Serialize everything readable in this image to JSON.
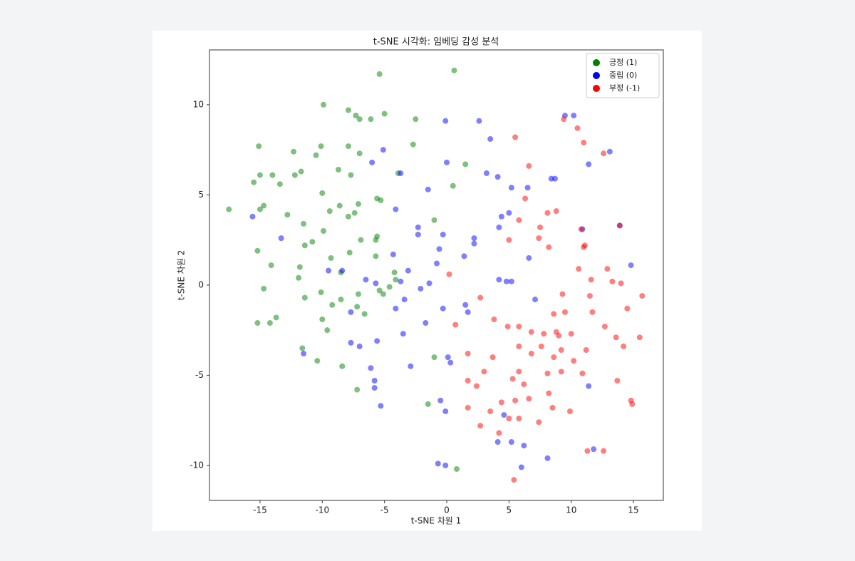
{
  "chart_data": {
    "type": "scatter",
    "title": "t-SNE 시각화: 임베딩 감성 분석",
    "x_label": "t-SNE 차원 1",
    "y_label": "t-SNE 차원 2",
    "xlim": [
      -19.06,
      17.4
    ],
    "ylim": [
      -11.94,
      13.04
    ],
    "xticks": [
      -15,
      -10,
      -5,
      0,
      5,
      10,
      15
    ],
    "yticks": [
      -10,
      -5,
      0,
      5,
      10
    ],
    "legend": "upper right",
    "alpha": 0.5,
    "series": [
      {
        "name": "긍정 (1)",
        "color": "green",
        "x": [
          -5.4,
          0.6,
          -9.9,
          -7.9,
          -7.3,
          -7.0,
          -6.1,
          -5.0,
          -2.5,
          -15.1,
          -12.3,
          -10.5,
          -10.1,
          -7.9,
          -7.0,
          -2.7,
          -15.0,
          -14.0,
          -12.2,
          -11.7,
          -8.7,
          -7.7,
          -3.9,
          1.5,
          -15.5,
          -13.4,
          0.5,
          -17.5,
          -14.7,
          -15.0,
          -10.0,
          -12.8,
          -9.4,
          -8.6,
          -7.1,
          -5.6,
          -5.3,
          -7.4,
          -7.9,
          -11.5,
          -9.9,
          -1.0,
          -10.8,
          -11.4,
          -6.9,
          -5.6,
          -5.7,
          -15.2,
          -9.3,
          -7.8,
          -5.7,
          -14.1,
          -11.8,
          -11.9,
          -8.5,
          -4.2,
          -4.1,
          -14.7,
          -10.1,
          -5.4,
          -5.1,
          -4.6,
          -11.4,
          -9.2,
          -8.5,
          -7.1,
          -7.2,
          -6.6,
          -10.0,
          -13.7,
          -15.2,
          -14.2,
          -9.6,
          -11.6,
          -10.4,
          -1.0,
          -8.4,
          -7.2,
          -1.5,
          0.8
        ],
        "values": [
          11.7,
          11.9,
          10.0,
          9.7,
          9.4,
          9.2,
          9.2,
          9.5,
          9.2,
          7.7,
          7.4,
          7.2,
          7.7,
          7.7,
          7.3,
          7.8,
          6.1,
          6.1,
          6.1,
          6.3,
          6.4,
          6.1,
          6.2,
          6.7,
          5.7,
          5.6,
          5.5,
          4.2,
          4.4,
          4.2,
          5.1,
          3.9,
          4.1,
          4.4,
          4.5,
          4.8,
          4.7,
          4.0,
          3.8,
          3.4,
          3.0,
          3.6,
          2.4,
          2.2,
          2.5,
          2.7,
          2.5,
          1.9,
          1.5,
          1.8,
          1.6,
          1.1,
          1.0,
          0.4,
          0.7,
          0.7,
          0.3,
          -0.2,
          -0.4,
          -0.3,
          -0.5,
          -0.1,
          -0.7,
          -1.1,
          -0.8,
          -0.5,
          -1.2,
          -1.6,
          -1.9,
          -1.8,
          -2.1,
          -2.1,
          -2.5,
          -3.5,
          -4.2,
          -4.0,
          -4.5,
          -5.8,
          -6.6,
          -10.2
        ]
      },
      {
        "name": "중립 (0)",
        "color": "blue",
        "x": [
          -15.6,
          -13.3,
          -11.5,
          -9.5,
          -8.4,
          -7.7,
          -7.7,
          -7.0,
          -6.5,
          -5.7,
          -6.0,
          -5.1,
          -3.7,
          -4.1,
          -4.3,
          -3.7,
          -3.4,
          -4.1,
          -5.6,
          -6.1,
          -5.8,
          -5.8,
          -5.3,
          -3.5,
          -2.9,
          -3.1,
          -2.3,
          -2.3,
          -1.5,
          -0.1,
          0.0,
          -0.3,
          -0.6,
          -0.8,
          -2.1,
          -1.4,
          -1.7,
          -0.3,
          0.1,
          0.3,
          -0.5,
          -0.1,
          -0.7,
          -0.1,
          1.4,
          1.5,
          1.7,
          2.2,
          2.2,
          2.6,
          3.5,
          3.2,
          4.1,
          5.2,
          6.5,
          5.0,
          4.4,
          4.2,
          6.6,
          4.2,
          4.8,
          5.2,
          7.1,
          4.6,
          4.1,
          5.2,
          6.2,
          6.0,
          8.1,
          9.5,
          10.2,
          8.4,
          8.7,
          11.4,
          13.1,
          10.9,
          13.9,
          14.8,
          11.4,
          11.8
        ],
        "values": [
          3.8,
          2.6,
          -3.8,
          0.8,
          0.8,
          -1.5,
          -3.2,
          -3.4,
          0.3,
          0.1,
          6.8,
          7.5,
          6.2,
          4.2,
          1.7,
          0.2,
          -0.8,
          -1.3,
          -3.1,
          -4.6,
          -5.3,
          -5.7,
          -6.7,
          -2.7,
          -4.5,
          0.8,
          3.2,
          2.8,
          5.3,
          9.1,
          6.8,
          2.8,
          2.0,
          1.2,
          -0.2,
          0.1,
          -2.1,
          -1.3,
          -4.0,
          -4.3,
          -6.4,
          -7.0,
          -9.9,
          -10.0,
          1.6,
          -1.1,
          -1.5,
          2.3,
          2.6,
          9.1,
          8.1,
          6.2,
          6.0,
          5.4,
          5.4,
          4.0,
          3.8,
          3.2,
          1.5,
          0.3,
          0.2,
          0.2,
          -0.8,
          -7.2,
          -8.7,
          -8.7,
          -8.9,
          -10.1,
          -9.6,
          9.4,
          9.4,
          5.9,
          5.9,
          6.7,
          7.4,
          3.1,
          3.3,
          1.1,
          -5.6,
          -9.1
        ]
      },
      {
        "name": "부정 (-1)",
        "color": "red",
        "x": [
          5.5,
          6.6,
          6.3,
          5.8,
          5.0,
          0.2,
          0.7,
          2.7,
          1.7,
          1.7,
          2.4,
          3.0,
          3.7,
          3.8,
          4.9,
          5.8,
          5.8,
          6.8,
          6.8,
          5.3,
          5.8,
          6.2,
          6.6,
          5.5,
          4.4,
          3.5,
          1.7,
          2.7,
          5.0,
          4.2,
          7.4,
          5.8,
          5.4,
          7.5,
          8.1,
          8.8,
          8.2,
          7.4,
          10.5,
          9.4,
          11.0,
          12.6,
          10.8,
          11.0,
          11.1,
          10.6,
          12.9,
          11.6,
          13.3,
          14.0,
          13.9,
          9.3,
          11.5,
          15.7,
          14.5,
          11.7,
          9.5,
          8.6,
          7.8,
          8.8,
          9.0,
          10.0,
          12.7,
          13.6,
          14.2,
          15.5,
          11.2,
          9.2,
          8.6,
          7.6,
          10.2,
          8.1,
          9.2,
          10.9,
          8.2,
          8.5,
          9.9,
          13.7,
          14.8,
          14.9,
          11.3,
          12.6
        ],
        "values": [
          8.2,
          6.6,
          4.8,
          3.6,
          2.5,
          0.6,
          -2.2,
          -0.7,
          -3.8,
          -5.3,
          -5.6,
          -4.8,
          -4.0,
          -1.9,
          -2.3,
          -3.4,
          -2.3,
          -2.6,
          -3.8,
          -5.2,
          -4.8,
          -5.5,
          -6.3,
          -6.4,
          -6.5,
          -7.0,
          -6.8,
          -7.8,
          -7.4,
          -8.2,
          -7.6,
          -7.4,
          -10.8,
          3.2,
          4.0,
          4.1,
          2.1,
          2.6,
          8.7,
          9.2,
          7.9,
          7.3,
          3.1,
          2.1,
          2.2,
          0.9,
          0.9,
          0.3,
          0.2,
          0.1,
          3.3,
          -0.5,
          -0.6,
          -0.6,
          -1.3,
          -1.5,
          -1.5,
          -1.6,
          -2.7,
          -2.6,
          -2.8,
          -2.7,
          -2.3,
          -2.9,
          -3.4,
          -2.9,
          -3.6,
          -3.6,
          -4.0,
          -3.4,
          -4.2,
          -4.9,
          -4.8,
          -4.9,
          -6.0,
          -6.8,
          -7.0,
          -5.3,
          -6.4,
          -6.6,
          -9.2,
          -9.2
        ]
      }
    ]
  }
}
